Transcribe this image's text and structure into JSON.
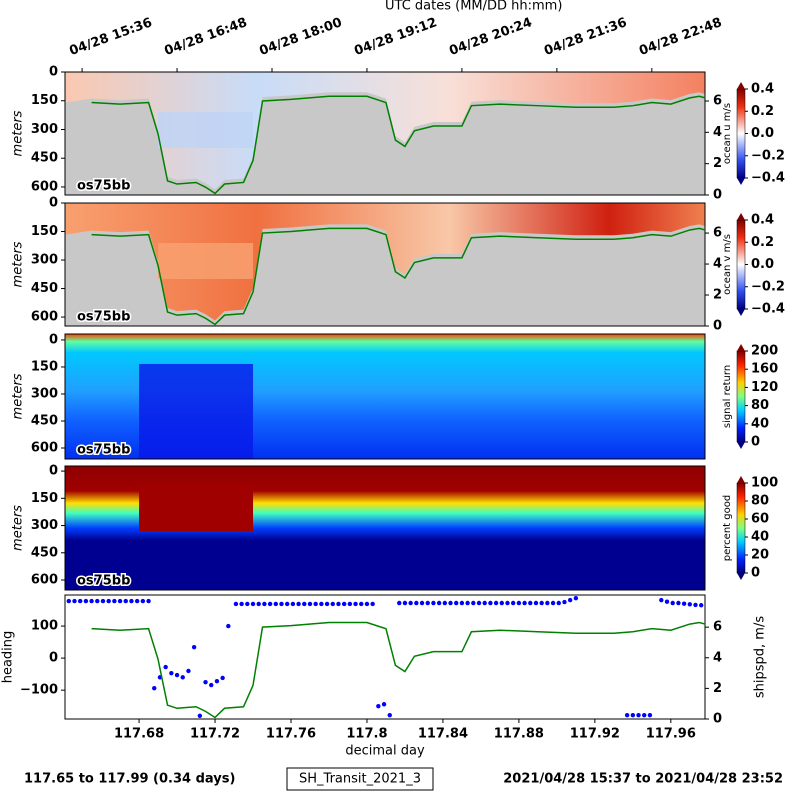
{
  "utc_axis": {
    "title": "UTC dates (MM/DD hh:mm)",
    "ticks": [
      {
        "value": 117.65,
        "label": "04/28 15:36"
      },
      {
        "value": 117.7,
        "label": "04/28 16:48"
      },
      {
        "value": 117.75,
        "label": "04/28 18:00"
      },
      {
        "value": 117.8,
        "label": "04/28 19:12"
      },
      {
        "value": 117.85,
        "label": "04/28 20:24"
      },
      {
        "value": 117.9,
        "label": "04/28 21:36"
      },
      {
        "value": 117.95,
        "label": "04/28 22:48"
      }
    ]
  },
  "chart_data": [
    {
      "type": "heatmap",
      "label": "os75bb",
      "ylabel": "meters",
      "xlim": [
        117.641,
        117.978
      ],
      "ylim": [
        642,
        0
      ],
      "yticks": [
        0,
        150,
        300,
        450,
        600
      ],
      "y2lim": [
        0,
        7.85
      ],
      "y2ticks": [
        0,
        2,
        4,
        6
      ],
      "colorbar": {
        "label": "ocean u m/s",
        "colormap": "RdBu_r",
        "lim": [
          -0.4,
          0.4
        ],
        "ticks": [
          0.4,
          0.2,
          {
            "value": 0,
            "label": "0.0"
          },
          {
            "value": -0.2,
            "label": "−0.2"
          },
          {
            "value": -0.4,
            "label": "−0.4"
          }
        ]
      }
    },
    {
      "type": "heatmap",
      "label": "os75bb",
      "ylabel": "meters",
      "xlim": [
        117.641,
        117.978
      ],
      "ylim": [
        647,
        0
      ],
      "yticks": [
        0,
        150,
        300,
        450,
        600
      ],
      "y2lim": [
        0,
        7.94
      ],
      "y2ticks": [
        0,
        2,
        4,
        6
      ],
      "colorbar": {
        "label": "ocean v m/s",
        "colormap": "RdBu_r",
        "lim": [
          -0.4,
          0.4
        ],
        "ticks": [
          0.4,
          0.2,
          {
            "value": 0,
            "label": "0.0"
          },
          {
            "value": -0.2,
            "label": "−0.2"
          },
          {
            "value": -0.4,
            "label": "−0.4"
          }
        ]
      }
    },
    {
      "type": "heatmap",
      "label": "os75bb",
      "ylabel": "meters",
      "xlim": [
        117.641,
        117.978
      ],
      "ylim": [
        661,
        -33
      ],
      "yticks": [
        0,
        150,
        300,
        450,
        600
      ],
      "colorbar": {
        "label": "signal return",
        "colormap": "jet",
        "lim": [
          0,
          200
        ],
        "ticks": [
          200,
          160,
          120,
          80,
          40,
          0
        ]
      }
    },
    {
      "type": "heatmap",
      "label": "os75bb",
      "ylabel": "meters",
      "xlim": [
        117.641,
        117.978
      ],
      "ylim": [
        655,
        -28
      ],
      "yticks": [
        0,
        150,
        300,
        450,
        600
      ],
      "colorbar": {
        "label": "percent good",
        "colormap": "jet",
        "lim": [
          0,
          100
        ],
        "ticks": [
          100,
          80,
          60,
          40,
          20,
          0
        ]
      }
    },
    {
      "type": "combo",
      "xlabel": "decimal day",
      "xlim": [
        117.641,
        117.978
      ],
      "xticks": [
        117.68,
        117.72,
        117.76,
        117.8,
        117.84,
        117.88,
        117.92,
        117.96
      ],
      "ylim": [
        -190,
        197
      ],
      "yticks": [
        100,
        0,
        {
          "value": -100,
          "label": "−100"
        }
      ],
      "y2lim": [
        0,
        8.1
      ],
      "y2ticks": [
        0,
        2,
        4,
        6
      ],
      "series": [
        {
          "name": "heading",
          "color": "#0000ff",
          "kind": "scatter",
          "x": [
            117.643,
            117.646,
            117.649,
            117.652,
            117.655,
            117.658,
            117.661,
            117.664,
            117.667,
            117.67,
            117.673,
            117.676,
            117.679,
            117.682,
            117.685,
            117.688,
            117.691,
            117.694,
            117.697,
            117.7,
            117.703,
            117.706,
            117.709,
            117.712,
            117.715,
            117.718,
            117.721,
            117.724,
            117.727,
            117.731,
            117.734,
            117.737,
            117.74,
            117.743,
            117.746,
            117.749,
            117.752,
            117.755,
            117.758,
            117.761,
            117.764,
            117.767,
            117.77,
            117.773,
            117.776,
            117.779,
            117.782,
            117.785,
            117.788,
            117.791,
            117.794,
            117.797,
            117.8,
            117.803,
            117.806,
            117.809,
            117.812,
            117.817,
            117.82,
            117.823,
            117.826,
            117.829,
            117.832,
            117.835,
            117.838,
            117.841,
            117.844,
            117.847,
            117.85,
            117.853,
            117.856,
            117.859,
            117.862,
            117.865,
            117.868,
            117.871,
            117.874,
            117.877,
            117.88,
            117.883,
            117.886,
            117.889,
            117.892,
            117.895,
            117.898,
            117.901,
            117.904,
            117.907,
            117.91,
            117.937,
            117.94,
            117.943,
            117.946,
            117.949,
            117.955,
            117.958,
            117.961,
            117.964,
            117.967,
            117.97,
            117.973,
            117.976
          ],
          "values": [
            178,
            178,
            178,
            178,
            178,
            178,
            178,
            178,
            178,
            178,
            178,
            178,
            178,
            178,
            178,
            -94,
            -60,
            -28,
            -47,
            -53,
            -60,
            -40,
            34,
            -180,
            -75,
            -84,
            -72,
            -62,
            100,
            169,
            169,
            169,
            169,
            169,
            169,
            169,
            169,
            169,
            169,
            169,
            169,
            169,
            169,
            169,
            169,
            169,
            169,
            169,
            169,
            169,
            169,
            169,
            169,
            169,
            -150,
            -144,
            -178,
            172,
            172,
            172,
            172,
            172,
            172,
            172,
            172,
            172,
            172,
            172,
            172,
            172,
            172,
            172,
            172,
            172,
            172,
            172,
            172,
            172,
            172,
            172,
            172,
            172,
            172,
            172,
            172,
            172,
            175,
            181,
            187,
            -178,
            -178,
            -178,
            -178,
            -178,
            181,
            176,
            172,
            172,
            170,
            168,
            166,
            165
          ]
        },
        {
          "name": "shipspd, m/s",
          "color": "#008000",
          "kind": "line",
          "axis": "y2",
          "x": [
            117.655,
            117.67,
            117.685,
            117.69,
            117.695,
            117.7,
            117.71,
            117.715,
            117.72,
            117.725,
            117.735,
            117.74,
            117.745,
            117.76,
            117.78,
            117.8,
            117.81,
            117.815,
            117.82,
            117.825,
            117.835,
            117.85,
            117.855,
            117.87,
            117.89,
            117.91,
            117.93,
            117.94,
            117.95,
            117.96,
            117.97,
            117.975,
            117.978
          ],
          "values": [
            5.9,
            5.8,
            5.9,
            3.9,
            0.9,
            0.7,
            0.8,
            0.5,
            0.1,
            0.7,
            0.8,
            2.2,
            6.0,
            6.1,
            6.3,
            6.3,
            5.9,
            3.5,
            3.1,
            4.1,
            4.4,
            4.4,
            5.7,
            5.8,
            5.7,
            5.6,
            5.6,
            5.7,
            5.9,
            5.8,
            6.2,
            6.3,
            6.2
          ]
        }
      ]
    }
  ],
  "footer": {
    "left": "117.65 to 117.99 (0.34 days)",
    "center": "SH_Transit_2021_3",
    "right": "2021/04/28 15:37 to 2021/04/28 23:52"
  }
}
